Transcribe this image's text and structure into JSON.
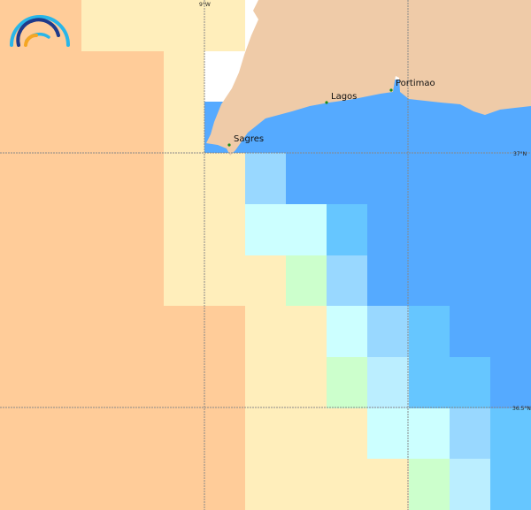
{
  "map": {
    "palette": {
      "O": "#FFCC99",
      "C": "#FFEEBB",
      "W": "#FFFFFF",
      "B": "#55AAFF",
      "L": "#99D8FF",
      "Y": "#CCFFFF",
      "M": "#66C6FF",
      "G": "#CCFFCC",
      "P": "#BBEEFF",
      "land": "#EFCBA8"
    },
    "grid_cells": [
      "OOCCCC-------",
      "OOOOCW-------",
      "OOOOC--------",
      "OOOOCCLBBBBBB",
      "OOOOCCYYMBBBB",
      "OOOOCCCGLBBBB",
      "OOOOOOCCYLMBB",
      "OOOOOOCCGPMMB",
      "OOOOOOCCCYYLM",
      "OOOOOOCCCCGPM"
    ],
    "graticule": {
      "lon_label": "9°W",
      "lat_labels": [
        "37°N",
        "36.5°N"
      ]
    },
    "cities": [
      {
        "name": "Sagres"
      },
      {
        "name": "Lagos"
      },
      {
        "name": "Portimao"
      }
    ],
    "city_marker_color": "#1a8a1a",
    "logo": {
      "colors": [
        "#29B6E8",
        "#1F3A8A",
        "#F5A623"
      ]
    }
  }
}
